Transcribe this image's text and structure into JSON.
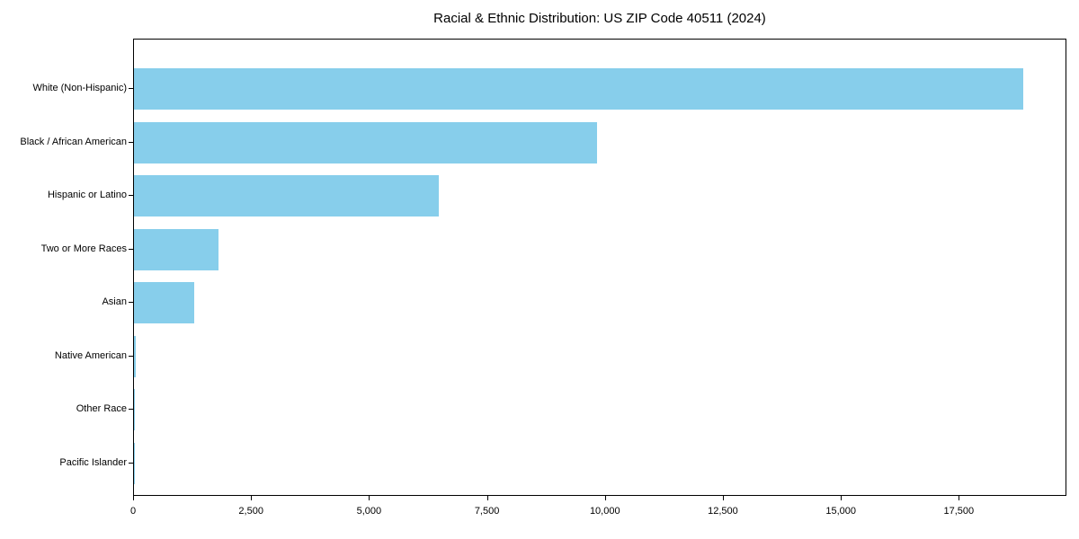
{
  "chart_data": {
    "type": "bar",
    "orientation": "horizontal",
    "title": "Racial & Ethnic Distribution: US ZIP Code 40511 (2024)",
    "categories": [
      "White (Non-Hispanic)",
      "Black / African American",
      "Hispanic or Latino",
      "Two or More Races",
      "Asian",
      "Native American",
      "Other Race",
      "Pacific Islander"
    ],
    "values": [
      18850,
      9815,
      6460,
      1790,
      1275,
      45,
      25,
      10
    ],
    "xlabel": "",
    "ylabel": "",
    "xlim": [
      0,
      19780
    ],
    "x_ticks": [
      0,
      2500,
      5000,
      7500,
      10000,
      12500,
      15000,
      17500
    ],
    "x_tick_labels": [
      "0",
      "2,500",
      "5,000",
      "7,500",
      "10,000",
      "12,500",
      "15,000",
      "17,500"
    ],
    "bar_color": "#87CEEB",
    "text_color": "#000000",
    "grid": false,
    "legend_position": "none"
  }
}
